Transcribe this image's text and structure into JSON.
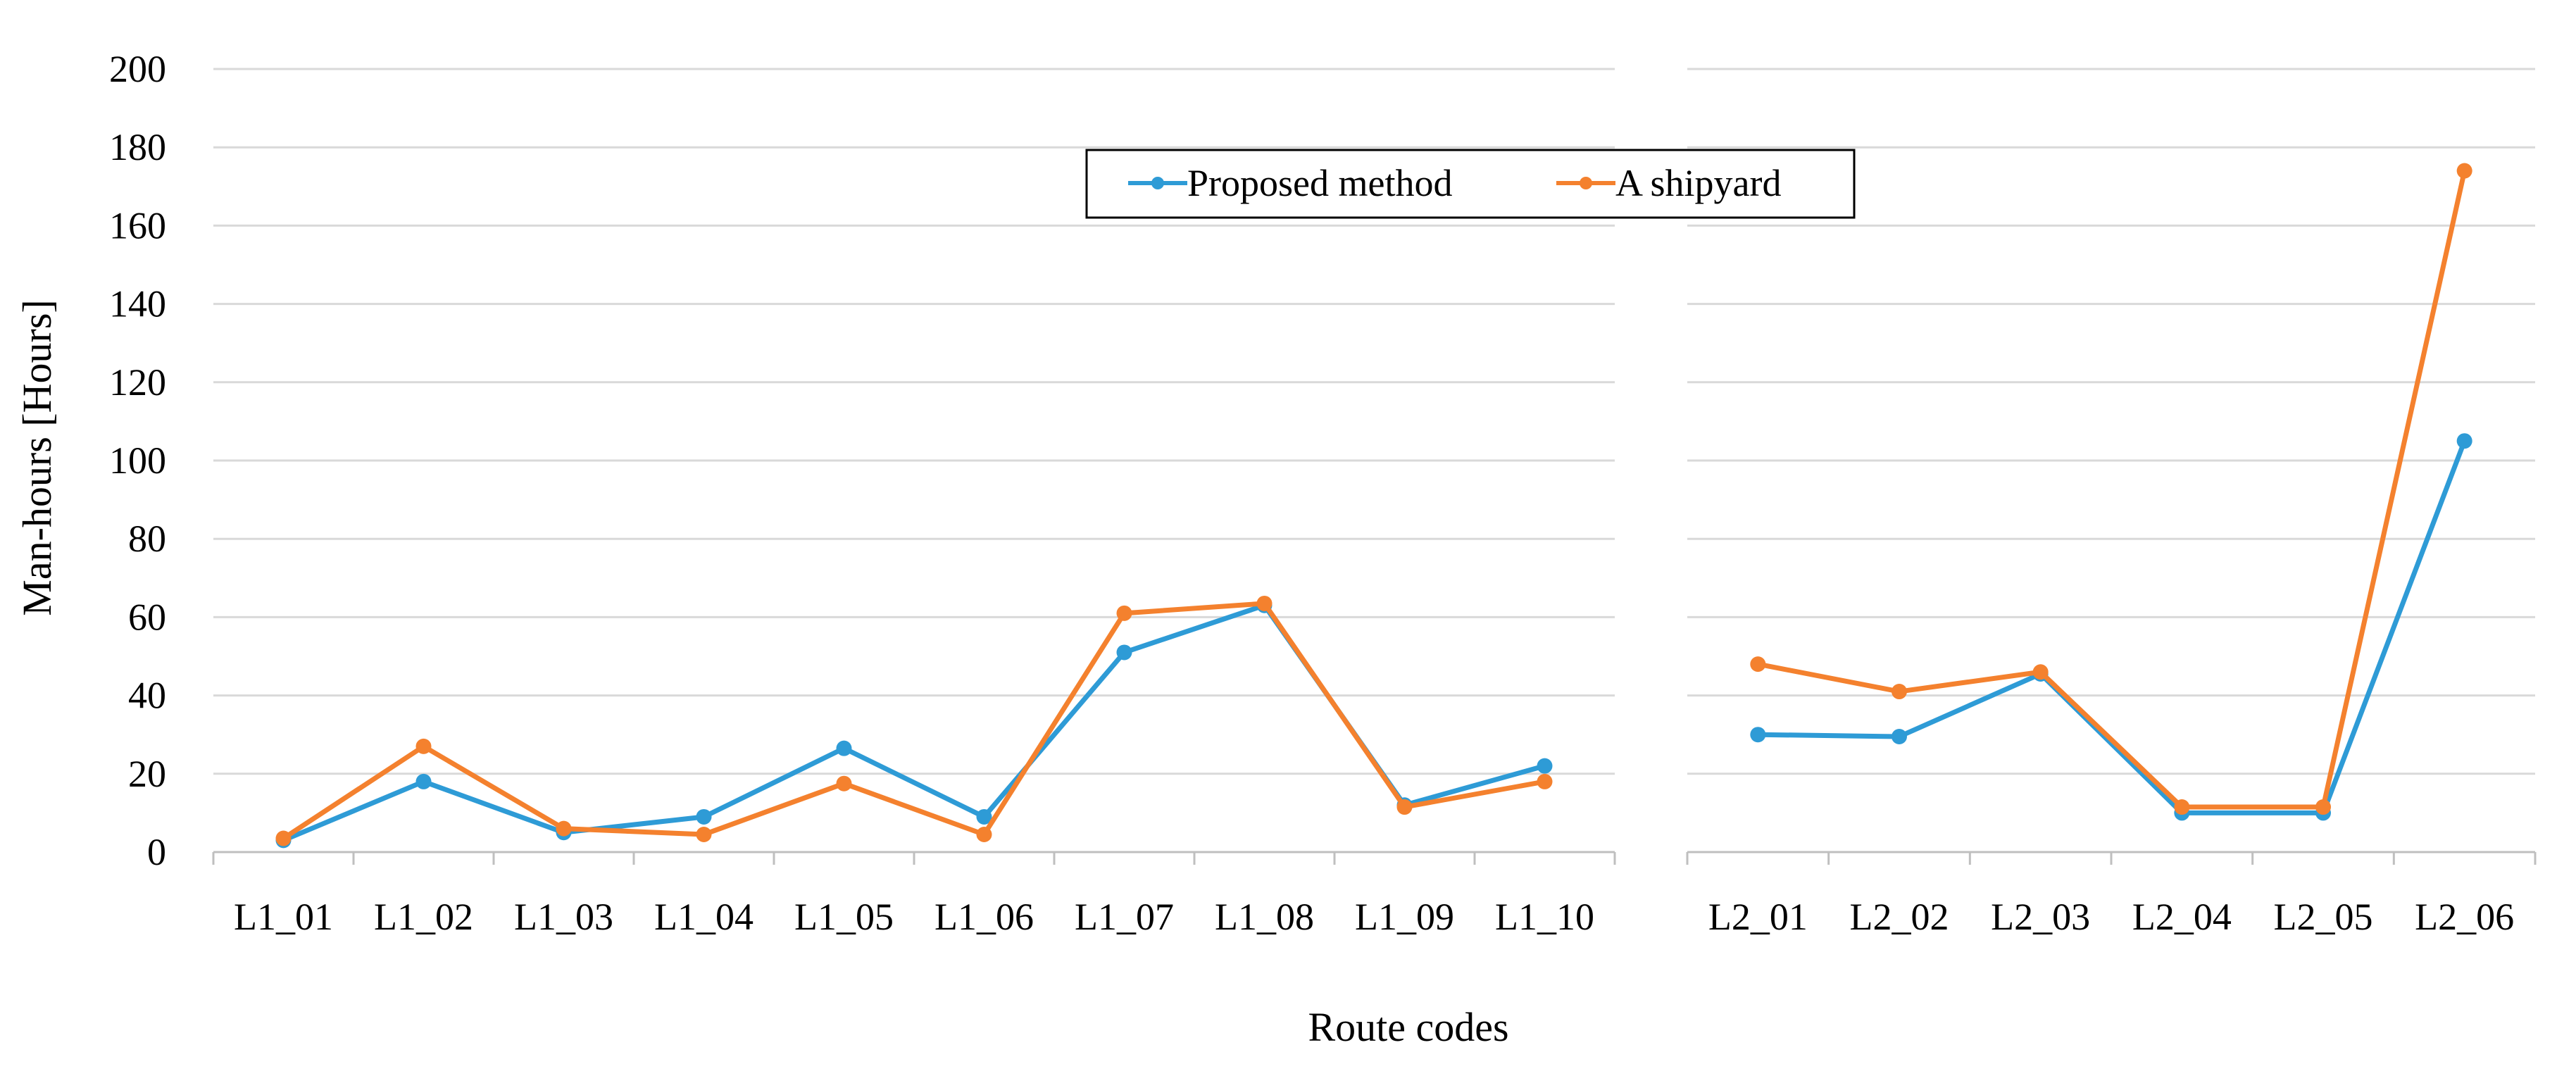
{
  "chart_data": {
    "type": "line",
    "ylabel": "Man-hours [Hours]",
    "xlabel": "Route codes",
    "ylim": [
      0,
      200
    ],
    "yticks": [
      "0",
      "20",
      "40",
      "60",
      "80",
      "100",
      "120",
      "140",
      "160",
      "180",
      "200"
    ],
    "grid": true,
    "legend_position": "top-center",
    "colors": {
      "proposed": "#2e9bd6",
      "shipyard": "#f4812e"
    },
    "groups": [
      {
        "categories": [
          "L1_01",
          "L1_02",
          "L1_03",
          "L1_04",
          "L1_05",
          "L1_06",
          "L1_07",
          "L1_08",
          "L1_09",
          "L1_10"
        ],
        "series": [
          {
            "name": "Proposed method",
            "values": [
              3,
              18,
              5,
              9,
              26.5,
              9,
              51,
              63,
              12,
              22
            ]
          },
          {
            "name": "A shipyard",
            "values": [
              3.5,
              27,
              6,
              4.5,
              17.5,
              4.5,
              61,
              63.5,
              11.5,
              18
            ]
          }
        ]
      },
      {
        "categories": [
          "L2_01",
          "L2_02",
          "L2_03",
          "L2_04",
          "L2_05",
          "L2_06"
        ],
        "series": [
          {
            "name": "Proposed method",
            "values": [
              30,
              29.5,
              45.5,
              10,
              10,
              105
            ]
          },
          {
            "name": "A shipyard",
            "values": [
              48,
              41,
              46,
              11.5,
              11.5,
              174
            ]
          }
        ]
      }
    ]
  }
}
